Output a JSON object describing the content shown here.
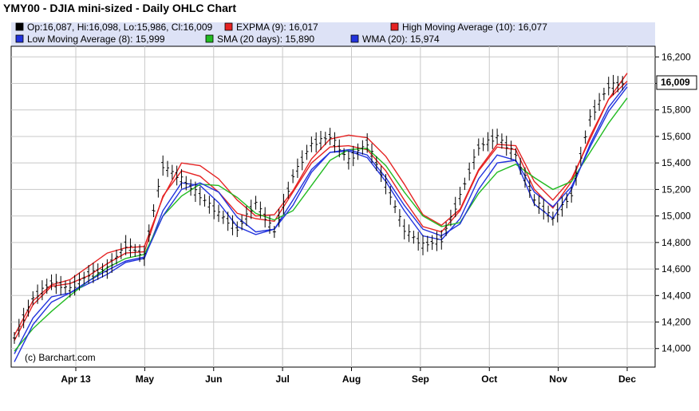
{
  "chart_data": {
    "type": "line",
    "title": "YMY00 - DJIA mini-sized - Daily OHLC Chart",
    "legend": [
      {
        "id": "ohlc",
        "label": "Op:16,087, Hi:16,098, Lo:15,986, Cl:16,009",
        "color": "#000000"
      },
      {
        "id": "expma",
        "label": "EXPMA (9): 16,017",
        "color": "#e52222"
      },
      {
        "id": "highma",
        "label": "High Moving Average (10): 16,077",
        "color": "#e52222"
      },
      {
        "id": "lowma",
        "label": "Low Moving Average (8): 15,999",
        "color": "#2233dd"
      },
      {
        "id": "sma",
        "label": "SMA (20 days): 15,890",
        "color": "#22bb22"
      },
      {
        "id": "wma",
        "label": "WMA (20): 15,974",
        "color": "#2233dd"
      }
    ],
    "x_labels": [
      "Apr 13",
      "May",
      "Jun",
      "Jul",
      "Aug",
      "Sep",
      "Oct",
      "Nov",
      "Dec"
    ],
    "y_ticks": [
      14000,
      14200,
      14400,
      14600,
      14800,
      15000,
      15200,
      15400,
      15600,
      15800,
      16000,
      16200
    ],
    "ylim": [
      13860,
      16280
    ],
    "last_value_label": "16,009",
    "last_value": 16009,
    "watermark": "(c) Barchart.com",
    "colors": {
      "legend_bg": "#dde2f6",
      "grid": "#c8c8c8",
      "last_label_bg": "#ffffff"
    },
    "series": [
      {
        "name": "OHLC",
        "values": [
          14080,
          14380,
          14500,
          14450,
          14560,
          14600,
          14780,
          14700,
          15380,
          15280,
          15150,
          15020,
          14900,
          15100,
          14880,
          15300,
          15540,
          15600,
          15420,
          15550,
          15240,
          14900,
          14780,
          14820,
          15150,
          15520,
          15600,
          15460,
          15120,
          14980,
          15160,
          15740,
          15980,
          16009
        ]
      },
      {
        "name": "EXPMA (9)",
        "values": [
          14060,
          14330,
          14470,
          14490,
          14550,
          14640,
          14720,
          14730,
          15150,
          15340,
          15300,
          15180,
          15020,
          14980,
          14960,
          15180,
          15400,
          15520,
          15530,
          15500,
          15340,
          15120,
          14920,
          14880,
          15040,
          15340,
          15520,
          15500,
          15200,
          15060,
          15260,
          15600,
          15880,
          16017
        ]
      },
      {
        "name": "High Moving Average (10)",
        "values": [
          14100,
          14360,
          14480,
          14520,
          14620,
          14720,
          14760,
          14770,
          15140,
          15400,
          15380,
          15280,
          15120,
          15000,
          15010,
          15190,
          15430,
          15580,
          15610,
          15590,
          15450,
          15240,
          15010,
          14930,
          15050,
          15350,
          15540,
          15530,
          15260,
          15120,
          15280,
          15580,
          15880,
          16077
        ]
      },
      {
        "name": "Low Moving Average (8)",
        "values": [
          13960,
          14230,
          14390,
          14420,
          14490,
          14560,
          14650,
          14680,
          15040,
          15250,
          15230,
          15100,
          14920,
          14860,
          14900,
          15120,
          15350,
          15480,
          15490,
          15440,
          15260,
          15040,
          14850,
          14820,
          14980,
          15280,
          15460,
          15420,
          15090,
          14980,
          15200,
          15540,
          15820,
          15999
        ]
      },
      {
        "name": "SMA (20 days)",
        "values": [
          13980,
          14150,
          14280,
          14400,
          14510,
          14610,
          14680,
          14710,
          15000,
          15150,
          15240,
          15230,
          15140,
          15020,
          14970,
          15040,
          15230,
          15420,
          15500,
          15510,
          15380,
          15180,
          15000,
          14920,
          14950,
          15170,
          15330,
          15390,
          15290,
          15200,
          15260,
          15480,
          15700,
          15890
        ]
      },
      {
        "name": "WMA (20)",
        "values": [
          13900,
          14180,
          14350,
          14420,
          14510,
          14590,
          14660,
          14690,
          15000,
          15200,
          15250,
          15180,
          14990,
          14880,
          14900,
          15080,
          15330,
          15480,
          15500,
          15460,
          15290,
          15080,
          14900,
          14850,
          14940,
          15200,
          15400,
          15420,
          15180,
          15070,
          15220,
          15520,
          15790,
          15974
        ]
      }
    ]
  }
}
